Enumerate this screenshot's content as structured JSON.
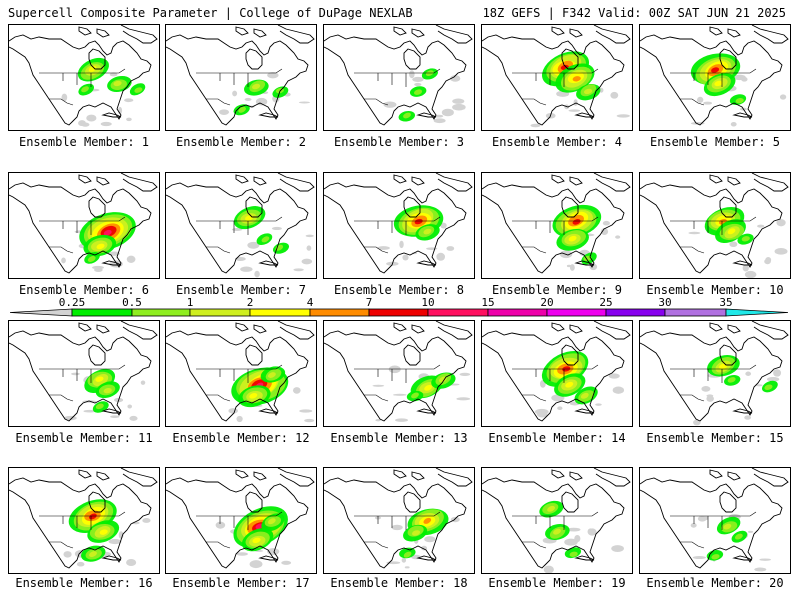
{
  "header": {
    "title": "Supercell Composite Parameter | College of DuPage NEXLAB",
    "run_info": "18Z GEFS | F342 Valid: 00Z SAT JUN 21 2025"
  },
  "colorbar": {
    "labels": [
      "0.25",
      "0.5",
      "1",
      "2",
      "4",
      "7",
      "10",
      "15",
      "20",
      "25",
      "30",
      "35"
    ],
    "colors": [
      "#d3d3d3",
      "#00ee00",
      "#8fee20",
      "#cfef20",
      "#ffff00",
      "#ff8c00",
      "#ee0000",
      "#ff1060",
      "#ee00aa",
      "#ee00ee",
      "#8800ee",
      "#b070e0",
      "#20e8e8"
    ]
  },
  "members": [
    {
      "label": "Ensemble Member: 1",
      "cores": [
        [
          0.55,
          0.42,
          3
        ],
        [
          0.72,
          0.55,
          2
        ],
        [
          0.5,
          0.6,
          1
        ],
        [
          0.85,
          0.6,
          1
        ]
      ]
    },
    {
      "label": "Ensemble Member: 2",
      "cores": [
        [
          0.6,
          0.58,
          2
        ],
        [
          0.75,
          0.62,
          1
        ],
        [
          0.5,
          0.8,
          1
        ]
      ]
    },
    {
      "label": "Ensemble Member: 3",
      "cores": [
        [
          0.7,
          0.45,
          1
        ],
        [
          0.62,
          0.62,
          1
        ],
        [
          0.55,
          0.85,
          1
        ]
      ]
    },
    {
      "label": "Ensemble Member: 4",
      "cores": [
        [
          0.55,
          0.4,
          5
        ],
        [
          0.62,
          0.5,
          4
        ],
        [
          0.7,
          0.62,
          2
        ]
      ]
    },
    {
      "label": "Ensemble Member: 5",
      "cores": [
        [
          0.5,
          0.42,
          5
        ],
        [
          0.52,
          0.55,
          3
        ],
        [
          0.65,
          0.7,
          1
        ]
      ]
    },
    {
      "label": "Ensemble Member: 6",
      "cores": [
        [
          0.65,
          0.55,
          6
        ],
        [
          0.6,
          0.68,
          3
        ],
        [
          0.55,
          0.8,
          1
        ]
      ]
    },
    {
      "label": "Ensemble Member: 7",
      "cores": [
        [
          0.55,
          0.42,
          3
        ],
        [
          0.65,
          0.62,
          1
        ],
        [
          0.75,
          0.7,
          1
        ]
      ]
    },
    {
      "label": "Ensemble Member: 8",
      "cores": [
        [
          0.62,
          0.45,
          5
        ],
        [
          0.68,
          0.55,
          2
        ]
      ]
    },
    {
      "label": "Ensemble Member: 9",
      "cores": [
        [
          0.62,
          0.45,
          5
        ],
        [
          0.6,
          0.62,
          3
        ],
        [
          0.7,
          0.8,
          1
        ]
      ]
    },
    {
      "label": "Ensemble Member: 10",
      "cores": [
        [
          0.55,
          0.45,
          4
        ],
        [
          0.6,
          0.55,
          3
        ],
        [
          0.7,
          0.62,
          1
        ]
      ]
    },
    {
      "label": "Ensemble Member: 11",
      "cores": [
        [
          0.6,
          0.55,
          3
        ],
        [
          0.65,
          0.65,
          2
        ],
        [
          0.6,
          0.8,
          1
        ]
      ]
    },
    {
      "label": "Ensemble Member: 12",
      "cores": [
        [
          0.62,
          0.6,
          6
        ],
        [
          0.58,
          0.7,
          3
        ],
        [
          0.7,
          0.5,
          2
        ]
      ]
    },
    {
      "label": "Ensemble Member: 13",
      "cores": [
        [
          0.68,
          0.62,
          3
        ],
        [
          0.78,
          0.55,
          2
        ],
        [
          0.6,
          0.7,
          1
        ]
      ]
    },
    {
      "label": "Ensemble Member: 14",
      "cores": [
        [
          0.55,
          0.45,
          5
        ],
        [
          0.58,
          0.6,
          3
        ],
        [
          0.68,
          0.7,
          2
        ]
      ]
    },
    {
      "label": "Ensemble Member: 15",
      "cores": [
        [
          0.55,
          0.42,
          3
        ],
        [
          0.6,
          0.55,
          1
        ],
        [
          0.85,
          0.62,
          1
        ]
      ]
    },
    {
      "label": "Ensemble Member: 16",
      "cores": [
        [
          0.55,
          0.45,
          5
        ],
        [
          0.62,
          0.6,
          3
        ],
        [
          0.55,
          0.8,
          2
        ]
      ]
    },
    {
      "label": "Ensemble Member: 17",
      "cores": [
        [
          0.62,
          0.55,
          6
        ],
        [
          0.6,
          0.68,
          3
        ],
        [
          0.7,
          0.5,
          2
        ]
      ]
    },
    {
      "label": "Ensemble Member: 18",
      "cores": [
        [
          0.68,
          0.5,
          4
        ],
        [
          0.6,
          0.6,
          2
        ],
        [
          0.55,
          0.8,
          1
        ]
      ]
    },
    {
      "label": "Ensemble Member: 19",
      "cores": [
        [
          0.45,
          0.38,
          2
        ],
        [
          0.5,
          0.6,
          2
        ],
        [
          0.6,
          0.8,
          1
        ]
      ]
    },
    {
      "label": "Ensemble Member: 20",
      "cores": [
        [
          0.58,
          0.55,
          2
        ],
        [
          0.65,
          0.65,
          1
        ],
        [
          0.5,
          0.82,
          1
        ]
      ]
    }
  ]
}
